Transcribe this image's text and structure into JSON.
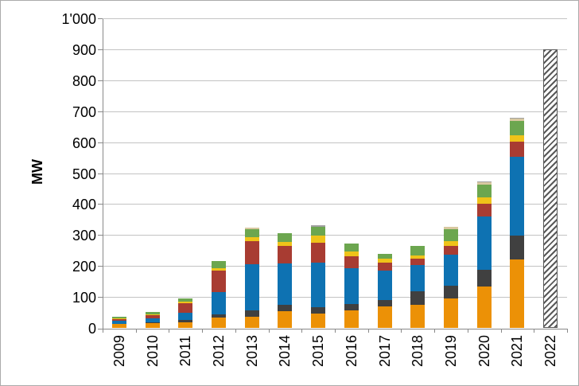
{
  "figure": {
    "title": "",
    "ylabel": "MW",
    "background_color": "#ffffff",
    "border_color": "#ababab",
    "gridline_color": "#c3c3c3",
    "axis_color": "#898989"
  },
  "chart_data": {
    "type": "bar",
    "stacked": true,
    "title": "",
    "xlabel": "",
    "ylabel": "MW",
    "ylim": [
      0,
      1000
    ],
    "ytick_labels": [
      "0",
      "100",
      "200",
      "300",
      "400",
      "500",
      "600",
      "700",
      "800",
      "900",
      "1'000"
    ],
    "grid": "horizontal",
    "legend": "none",
    "categories": [
      "2009",
      "2010",
      "2011",
      "2012",
      "2013",
      "2014",
      "2015",
      "2016",
      "2017",
      "2018",
      "2019",
      "2020",
      "2021",
      "2022"
    ],
    "series": [
      {
        "name": "orange-segment",
        "color": "#ec9106",
        "values": [
          12,
          15,
          19,
          34,
          36,
          53,
          47,
          57,
          70,
          75,
          94,
          135,
          220,
          0
        ]
      },
      {
        "name": "dark-gray-segment",
        "color": "#404040",
        "values": [
          2,
          3,
          7,
          9,
          21,
          21,
          21,
          21,
          21,
          43,
          43,
          54,
          77,
          0
        ]
      },
      {
        "name": "blue-segment",
        "color": "#0e72b2",
        "values": [
          9,
          14,
          23,
          72,
          150,
          134,
          144,
          114,
          93,
          84,
          100,
          170,
          257,
          0
        ]
      },
      {
        "name": "dark-red-segment",
        "color": "#a83c32",
        "values": [
          5,
          8,
          30,
          69,
          73,
          58,
          63,
          40,
          28,
          21,
          28,
          43,
          47,
          0
        ]
      },
      {
        "name": "yellow-segment",
        "color": "#efc319",
        "values": [
          2,
          3,
          6,
          9,
          12,
          12,
          23,
          15,
          11,
          11,
          15,
          20,
          20,
          0
        ]
      },
      {
        "name": "green-segment",
        "color": "#6ca64f",
        "values": [
          5,
          9,
          11,
          24,
          27,
          28,
          28,
          26,
          17,
          32,
          39,
          40,
          48,
          0
        ]
      },
      {
        "name": "beige-segment",
        "color": "#d8c8a0",
        "values": [
          0,
          0,
          0,
          0,
          5,
          0,
          0,
          0,
          0,
          0,
          7,
          8,
          6,
          0
        ]
      },
      {
        "name": "light-gray-cap-segment",
        "color": "#a0a0a0",
        "values": [
          0,
          0,
          0,
          0,
          0,
          0,
          6,
          0,
          0,
          0,
          0,
          4,
          5,
          0
        ]
      }
    ],
    "hatched_bar": {
      "category": "2022",
      "value": 900,
      "pattern": "diagonal-hatch",
      "stripe_color": "#595959",
      "background": "#ffffff"
    }
  }
}
